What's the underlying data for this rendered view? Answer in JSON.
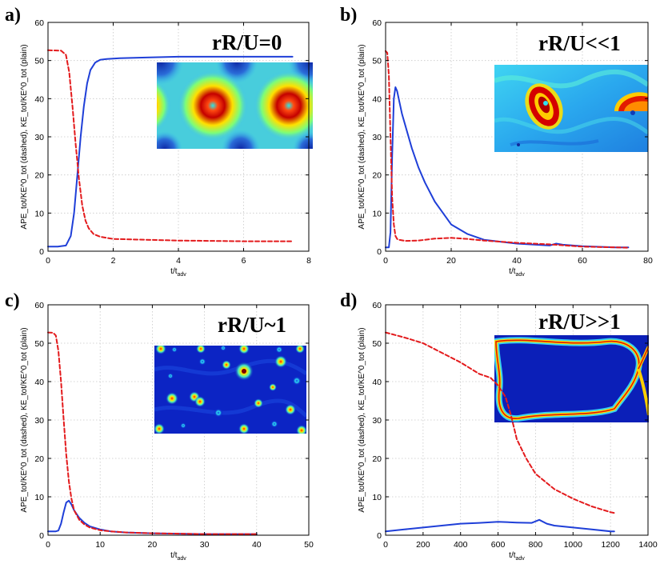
{
  "chart_data": [
    {
      "type": "line",
      "panel_label": "a)",
      "regime_label": "rR/U=0",
      "xlabel": "t/t_adv",
      "ylabel": "APE_tot/KE^0_tot (dashed), KE_tot/KE^0_tot (plain)",
      "xlim": [
        0,
        8
      ],
      "ylim": [
        0,
        60
      ],
      "xticks": [
        0,
        2,
        4,
        6,
        8
      ],
      "yticks": [
        0,
        10,
        20,
        30,
        40,
        50,
        60
      ],
      "inset": "vortex-lattice",
      "series": [
        {
          "name": "KE_tot/KE^0_tot (plain)",
          "style": "solid",
          "color": "#1f3fd8",
          "x": [
            0,
            0.3,
            0.55,
            0.7,
            0.8,
            0.9,
            1.0,
            1.1,
            1.2,
            1.3,
            1.45,
            1.6,
            1.8,
            2.2,
            3,
            4,
            5,
            6,
            7,
            7.5
          ],
          "y": [
            1.2,
            1.2,
            1.5,
            4,
            10,
            20,
            30,
            38,
            44,
            47.5,
            49.5,
            50.2,
            50.4,
            50.6,
            50.8,
            51,
            51,
            51,
            51,
            51
          ]
        },
        {
          "name": "APE_tot/KE^0_tot (dashed)",
          "style": "dashed",
          "color": "#e31a1c",
          "x": [
            0,
            0.4,
            0.55,
            0.65,
            0.75,
            0.85,
            0.95,
            1.05,
            1.15,
            1.25,
            1.4,
            1.6,
            2,
            3,
            4,
            5,
            6,
            7,
            7.5
          ],
          "y": [
            52.7,
            52.6,
            51.5,
            47,
            38,
            28,
            19,
            12,
            8,
            6,
            4.5,
            3.8,
            3.2,
            3,
            2.8,
            2.7,
            2.6,
            2.6,
            2.6
          ]
        }
      ]
    },
    {
      "type": "line",
      "panel_label": "b)",
      "regime_label": "rR/U<<1",
      "xlabel": "t/t_adv",
      "ylabel": "APE_tot/KE^0_tot (dashed), KE_tot/KE^0_tot (plain)",
      "xlim": [
        0,
        80
      ],
      "ylim": [
        0,
        60
      ],
      "xticks": [
        0,
        20,
        40,
        60,
        80
      ],
      "yticks": [
        0,
        10,
        20,
        30,
        40,
        50,
        60
      ],
      "inset": "distorted-vortices",
      "series": [
        {
          "name": "KE_tot/KE^0_tot (plain)",
          "style": "solid",
          "color": "#1f3fd8",
          "x": [
            0,
            1,
            1.5,
            2,
            2.5,
            3,
            3.5,
            4,
            5,
            6,
            8,
            10,
            12,
            15,
            20,
            25,
            30,
            40,
            50,
            52,
            54,
            60,
            70,
            74
          ],
          "y": [
            1,
            1,
            5,
            25,
            40,
            43,
            42,
            40,
            36,
            33,
            27,
            22,
            18,
            13,
            7,
            4.5,
            3,
            2,
            1.5,
            2,
            1.7,
            1.3,
            1,
            1
          ]
        },
        {
          "name": "APE_tot/KE^0_tot (dashed)",
          "style": "dashed",
          "color": "#e31a1c",
          "x": [
            0,
            0.5,
            1,
            1.5,
            2,
            2.5,
            3,
            3.5,
            4,
            6,
            10,
            15,
            20,
            25,
            30,
            40,
            50,
            55,
            60,
            70,
            74
          ],
          "y": [
            52.5,
            52,
            46,
            30,
            14,
            7,
            4,
            3.2,
            3,
            2.7,
            2.8,
            3.3,
            3.5,
            3.2,
            2.8,
            2.2,
            1.8,
            1.5,
            1.2,
            1,
            0.9
          ]
        }
      ]
    },
    {
      "type": "line",
      "panel_label": "c)",
      "regime_label": "rR/U~1",
      "xlabel": "t/t_adv",
      "ylabel": "APE_tot/KE^0_tot (dashed), KE_tot/KE^0_tot (plain)",
      "xlim": [
        0,
        50
      ],
      "ylim": [
        0,
        60
      ],
      "xticks": [
        0,
        10,
        20,
        30,
        40,
        50
      ],
      "yticks": [
        0,
        10,
        20,
        30,
        40,
        50,
        60
      ],
      "inset": "small-eddies",
      "series": [
        {
          "name": "KE_tot/KE^0_tot (plain)",
          "style": "solid",
          "color": "#1f3fd8",
          "x": [
            0,
            1.5,
            2,
            2.5,
            3,
            3.5,
            4,
            4.5,
            5,
            6,
            7,
            8,
            10,
            12,
            15,
            20,
            25,
            30,
            35,
            40
          ],
          "y": [
            1,
            1,
            1.2,
            3,
            6,
            8.5,
            9,
            8,
            6.5,
            4.5,
            3.2,
            2.3,
            1.5,
            1,
            0.7,
            0.5,
            0.4,
            0.3,
            0.3,
            0.3
          ]
        },
        {
          "name": "APE_tot/KE^0_tot (dashed)",
          "style": "dashed",
          "color": "#e31a1c",
          "x": [
            0,
            1,
            1.5,
            2,
            2.5,
            3,
            3.5,
            4,
            4.5,
            5,
            6,
            7,
            8,
            10,
            12,
            15,
            20,
            30,
            40
          ],
          "y": [
            52.8,
            52.7,
            52,
            48,
            40,
            30,
            21,
            14,
            9.5,
            6.5,
            4,
            2.8,
            2,
            1.3,
            1,
            0.7,
            0.5,
            0.3,
            0.3
          ]
        }
      ]
    },
    {
      "type": "line",
      "panel_label": "d)",
      "regime_label": "rR/U>>1",
      "xlabel": "t/t_adv",
      "ylabel": "APE_tot/KE^0_tot (dashed), KE_tot/KE^0_tot (plain)",
      "xlim": [
        0,
        1400
      ],
      "ylim": [
        0,
        60
      ],
      "xticks": [
        0,
        200,
        400,
        600,
        800,
        1000,
        1200,
        1400
      ],
      "yticks": [
        0,
        10,
        20,
        30,
        40,
        50,
        60
      ],
      "inset": "front-contour",
      "series": [
        {
          "name": "KE_tot/KE^0_tot (plain)",
          "style": "solid",
          "color": "#1f3fd8",
          "x": [
            0,
            100,
            200,
            300,
            400,
            500,
            600,
            700,
            780,
            820,
            860,
            900,
            1000,
            1100,
            1200,
            1220
          ],
          "y": [
            1,
            1.5,
            2,
            2.5,
            3,
            3.2,
            3.5,
            3.3,
            3.2,
            4,
            3,
            2.5,
            2,
            1.5,
            1,
            1
          ]
        },
        {
          "name": "APE_tot/KE^0_tot (dashed)",
          "style": "dashed",
          "color": "#e31a1c",
          "x": [
            0,
            100,
            200,
            300,
            400,
            500,
            560,
            600,
            640,
            670,
            700,
            750,
            800,
            900,
            1000,
            1100,
            1200,
            1220
          ],
          "y": [
            52.8,
            51.5,
            50,
            47.5,
            45,
            42,
            41,
            39,
            36,
            31,
            25,
            20,
            16,
            12,
            9.5,
            7.5,
            6,
            5.8
          ]
        }
      ]
    }
  ]
}
